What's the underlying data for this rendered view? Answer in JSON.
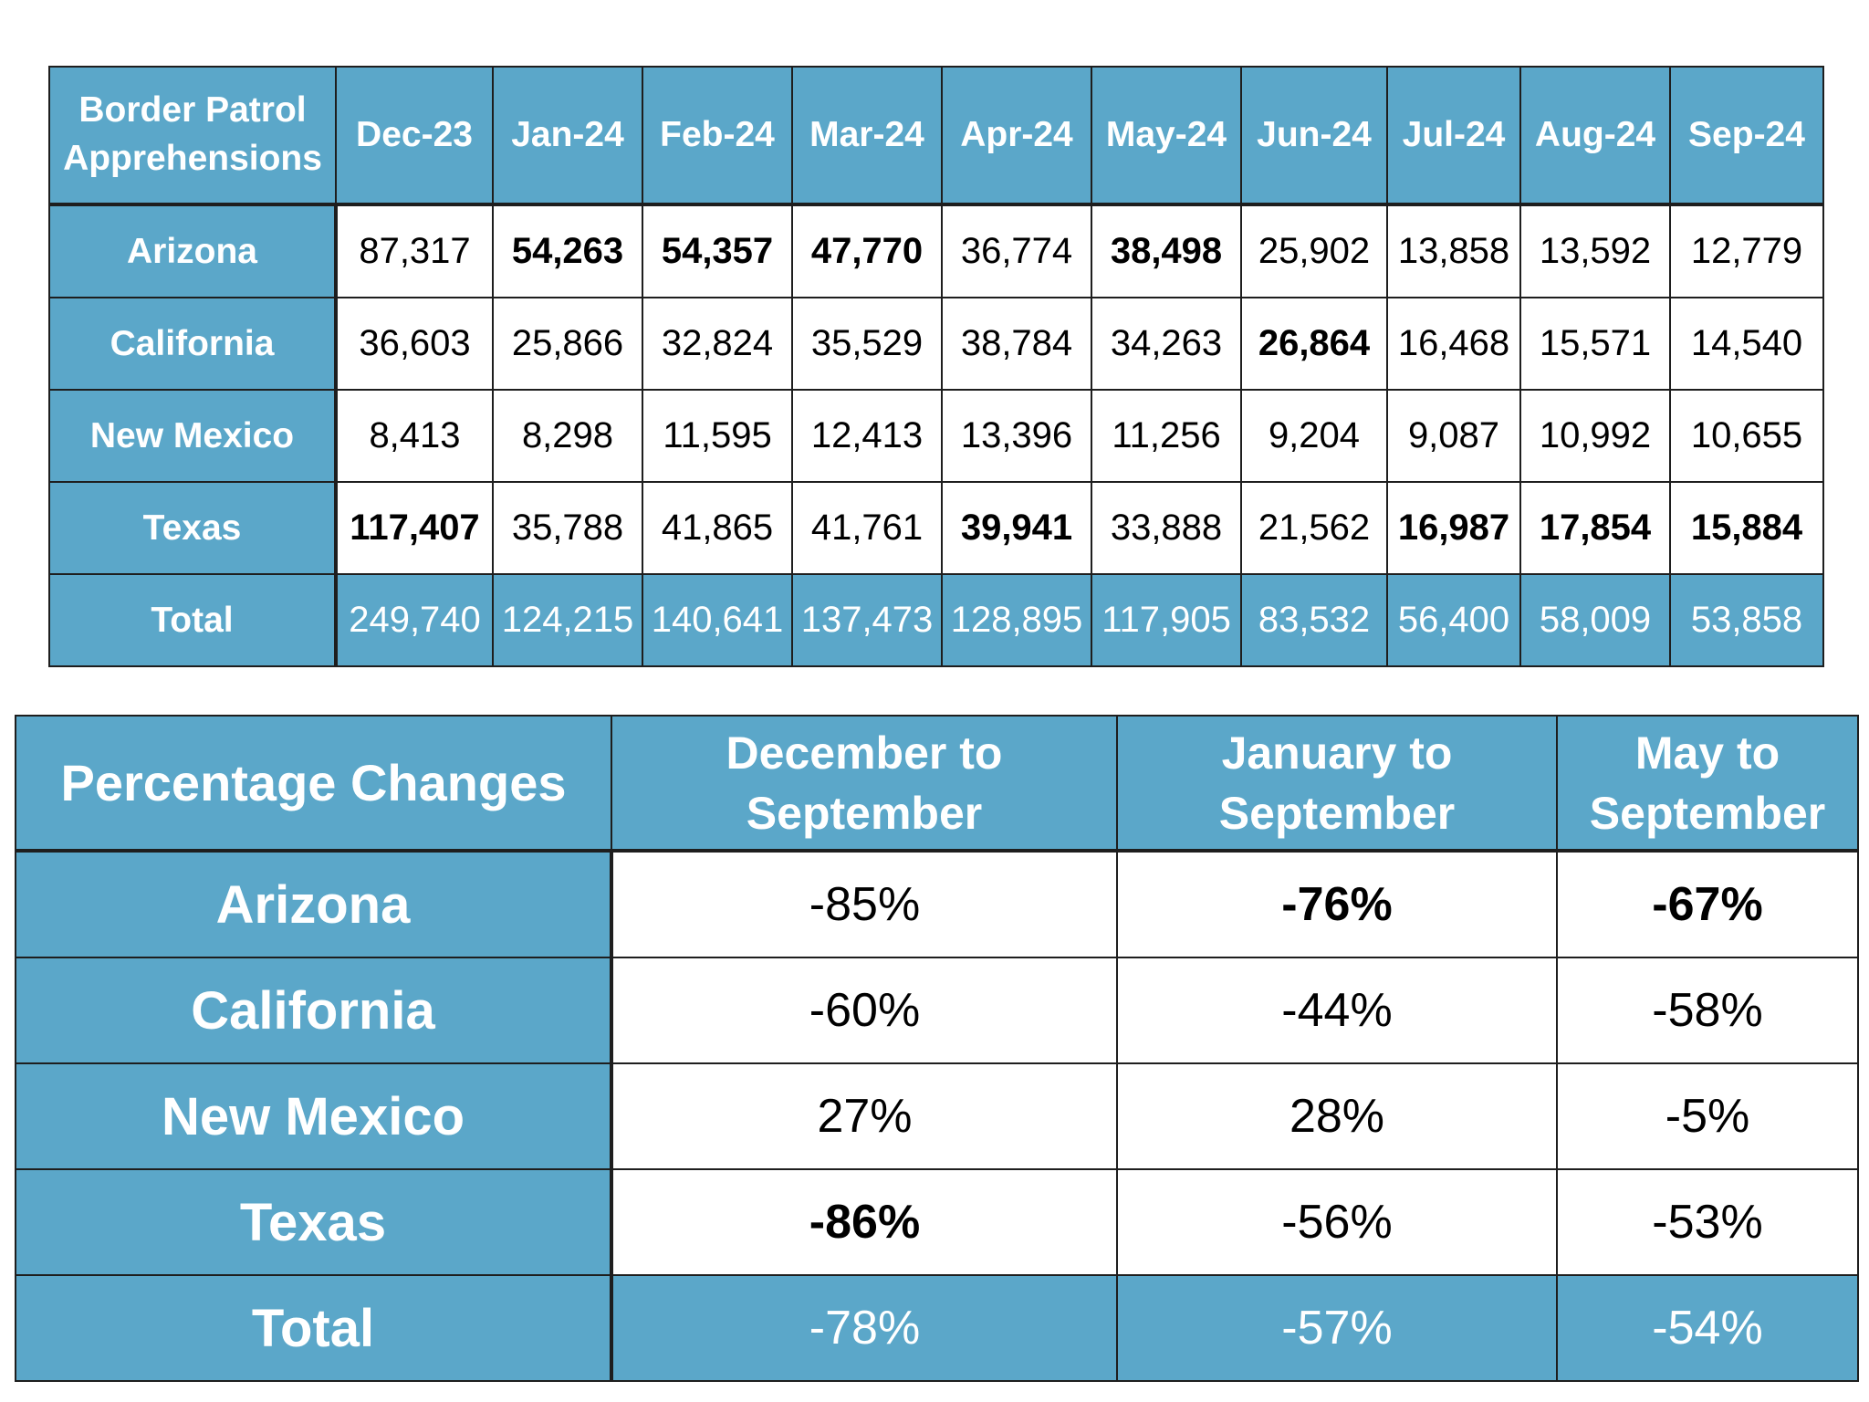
{
  "apprehensions_table": {
    "corner_label_line1": "Border Patrol",
    "corner_label_line2": "Apprehensions",
    "months": [
      "Dec-23",
      "Jan-24",
      "Feb-24",
      "Mar-24",
      "Apr-24",
      "May-24",
      "Jun-24",
      "Jul-24",
      "Aug-24",
      "Sep-24"
    ],
    "rows": [
      {
        "state": "Arizona",
        "values": [
          "87,317",
          "54,263",
          "54,357",
          "47,770",
          "36,774",
          "38,498",
          "25,902",
          "13,858",
          "13,592",
          "12,779"
        ],
        "bold": [
          false,
          true,
          true,
          true,
          false,
          true,
          false,
          false,
          false,
          false
        ]
      },
      {
        "state": "California",
        "values": [
          "36,603",
          "25,866",
          "32,824",
          "35,529",
          "38,784",
          "34,263",
          "26,864",
          "16,468",
          "15,571",
          "14,540"
        ],
        "bold": [
          false,
          false,
          false,
          false,
          false,
          false,
          true,
          false,
          false,
          false
        ]
      },
      {
        "state": "New Mexico",
        "values": [
          "8,413",
          "8,298",
          "11,595",
          "12,413",
          "13,396",
          "11,256",
          "9,204",
          "9,087",
          "10,992",
          "10,655"
        ],
        "bold": [
          false,
          false,
          false,
          false,
          false,
          false,
          false,
          false,
          false,
          false
        ]
      },
      {
        "state": "Texas",
        "values": [
          "117,407",
          "35,788",
          "41,865",
          "41,761",
          "39,941",
          "33,888",
          "21,562",
          "16,987",
          "17,854",
          "15,884"
        ],
        "bold": [
          true,
          false,
          false,
          false,
          true,
          false,
          false,
          true,
          true,
          true
        ]
      }
    ],
    "total": {
      "label": "Total",
      "values": [
        "249,740",
        "124,215",
        "140,641",
        "137,473",
        "128,895",
        "117,905",
        "83,532",
        "56,400",
        "58,009",
        "53,858"
      ]
    }
  },
  "percentage_table": {
    "corner_label": "Percentage Changes",
    "columns": [
      {
        "line1": "December to",
        "line2": "September"
      },
      {
        "line1": "January to",
        "line2": "September"
      },
      {
        "line1": "May to",
        "line2": "September"
      }
    ],
    "rows": [
      {
        "state": "Arizona",
        "values": [
          "-85%",
          "-76%",
          "-67%"
        ],
        "bold": [
          false,
          true,
          true
        ]
      },
      {
        "state": "California",
        "values": [
          "-60%",
          "-44%",
          "-58%"
        ],
        "bold": [
          false,
          false,
          false
        ]
      },
      {
        "state": "New Mexico",
        "values": [
          "27%",
          "28%",
          "-5%"
        ],
        "bold": [
          false,
          false,
          false
        ]
      },
      {
        "state": "Texas",
        "values": [
          "-86%",
          "-56%",
          "-53%"
        ],
        "bold": [
          true,
          false,
          false
        ]
      }
    ],
    "total": {
      "label": "Total",
      "values": [
        "-78%",
        "-57%",
        "-54%"
      ]
    }
  },
  "colors": {
    "header_fill": "#5ba7c9",
    "header_text": "#ffffff",
    "border": "#1e1e1e"
  }
}
